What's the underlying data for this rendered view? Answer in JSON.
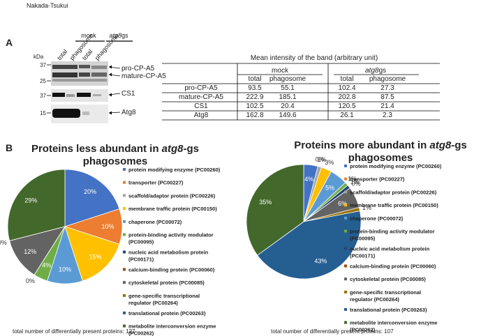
{
  "header": {
    "author": "Nakada-Tsukui"
  },
  "panel_a": {
    "label": "A",
    "groups": [
      {
        "name": "mock"
      },
      {
        "name_parts": [
          "atg8",
          "gs"
        ]
      }
    ],
    "lanes": [
      "total",
      "phagosome",
      "total",
      "phagosome"
    ],
    "kda_label": "kDa",
    "markers": [
      "37",
      "25",
      "37",
      "15"
    ],
    "bands": [
      "pro-CP-A5",
      "mature-CP-A5",
      "CS1",
      "Atg8"
    ]
  },
  "table": {
    "title": "Mean intensity of the band (arbitrary unit)",
    "groups": [
      {
        "name": "mock"
      },
      {
        "name_parts": [
          "atg8",
          "gs"
        ]
      }
    ],
    "columns": [
      "total",
      "phagosome",
      "total",
      "phagosome"
    ],
    "rows": [
      [
        "pro-CP-A5",
        93.5,
        55.1,
        102.4,
        27.3
      ],
      [
        "mature-CP-A5",
        222.9,
        185.1,
        202.8,
        87.5
      ],
      [
        "CS1",
        102.5,
        20.4,
        120.5,
        21.4
      ],
      [
        "Atg8",
        162.8,
        149.6,
        26.1,
        2.3
      ]
    ]
  },
  "panel_b": {
    "label": "B"
  },
  "chart_data": [
    {
      "type": "pie",
      "title_parts": [
        "Proteins less abundant in ",
        "atg8",
        "-gs",
        "phagosomes"
      ],
      "categories": [
        "protein modifying enzyme (PC00260)",
        "transporter (PC00227)",
        "scaffold/adaptor protein (PC00226)",
        "membrane traffic protein (PC00150)",
        "chaperone (PC00072)",
        "protein-binding activity modulator (PC00095)",
        "nucleic acid metabolism protein (PC00171)",
        "calcium-binding protein (PC00060)",
        "cytoskeletal protein (PC00085)",
        "gene-specific transcriptional regulator (PC00264)",
        "translational protein (PC00263)",
        "metabolite interconversion enzyme (PC00262)"
      ],
      "values": [
        20,
        10,
        0,
        15,
        10,
        4,
        0,
        0,
        12,
        0,
        0,
        29
      ],
      "value_labels": [
        "20%",
        "10%",
        null,
        "15%",
        "10%",
        "4%",
        "0%",
        null,
        "12%",
        "0%",
        null,
        "29%"
      ],
      "colors": [
        "#4472c4",
        "#ed7d31",
        "#a5a5a5",
        "#ffc000",
        "#5b9bd5",
        "#70ad47",
        "#264478",
        "#9e480e",
        "#636363",
        "#997300",
        "#255e91",
        "#43682b"
      ],
      "footnote": "total number of differentially present proteins: 127"
    },
    {
      "type": "pie",
      "title_parts": [
        "Proteins more abundant in ",
        "atg8",
        "-gs",
        "phagosomes"
      ],
      "categories": [
        "protein modifying enzyme (PC00260)",
        "transporter (PC00227)",
        "scaffold/adaptor protein (PC00226)",
        "membrane traffic protein (PC00150)",
        "chaperone (PC00072)",
        "protein-binding activity modulator (PC00095)",
        "nucleic acid metabolism protein (PC00171)",
        "calcium-binding protein (PC00060)",
        "cytoskeletal protein (PC00085)",
        "gene-specific transcriptional regulator (PC00264)",
        "translational protein (PC00263)",
        "metabolite interconversion enzyme (PC00262)"
      ],
      "values": [
        4,
        0,
        1,
        3,
        5,
        1,
        1,
        0,
        6,
        1,
        43,
        35
      ],
      "value_labels": [
        "4%",
        "0%",
        "1%",
        "3%",
        "5%",
        "1%",
        "1%",
        "0%",
        "6%",
        "1%",
        "43%",
        "35%"
      ],
      "colors": [
        "#4472c4",
        "#ed7d31",
        "#a5a5a5",
        "#ffc000",
        "#5b9bd5",
        "#70ad47",
        "#264478",
        "#9e480e",
        "#636363",
        "#997300",
        "#255e91",
        "#43682b"
      ],
      "footnote": "total number of differentially present proteins: 107"
    }
  ]
}
